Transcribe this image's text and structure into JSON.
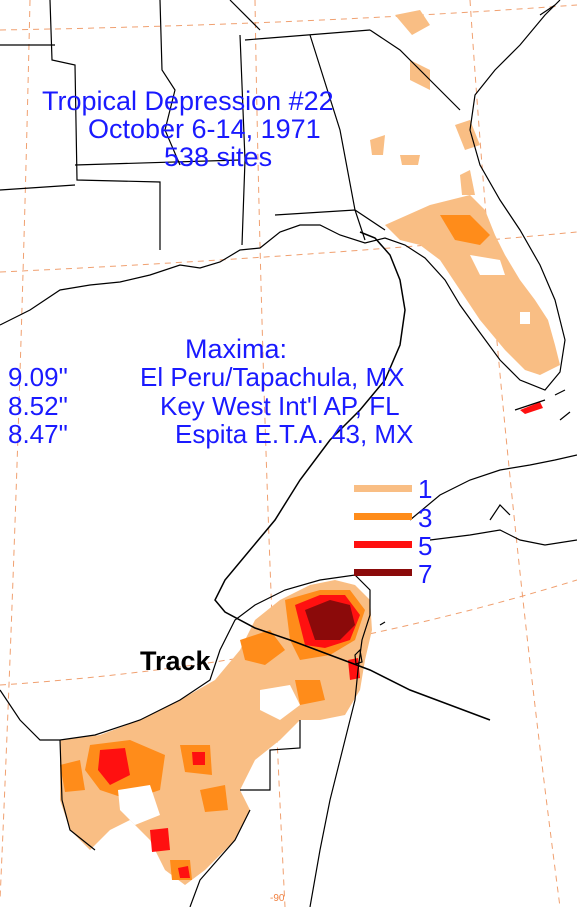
{
  "title": {
    "line1": "Tropical Depression #22",
    "line2": "October 6-14, 1971",
    "line3": "538 sites"
  },
  "maxima": {
    "heading": "Maxima:",
    "rows": [
      {
        "amount": "9.09\"",
        "location": "El Peru/Tapachula, MX"
      },
      {
        "amount": "8.52\"",
        "location": "Key West Int'l AP, FL"
      },
      {
        "amount": "8.47\"",
        "location": "Espita E.T.A. 43, MX"
      }
    ]
  },
  "legend": {
    "items": [
      {
        "label": "1",
        "color": "#f9be84"
      },
      {
        "label": "3",
        "color": "#ff8c1a"
      },
      {
        "label": "5",
        "color": "#ff1010"
      },
      {
        "label": "7",
        "color": "#8b0a0a"
      }
    ]
  },
  "track_label": "Track",
  "longitude_label": "-90",
  "colors": {
    "text": "#1a1aff",
    "coast": "#000000",
    "gridlines": "#f0a070"
  }
}
